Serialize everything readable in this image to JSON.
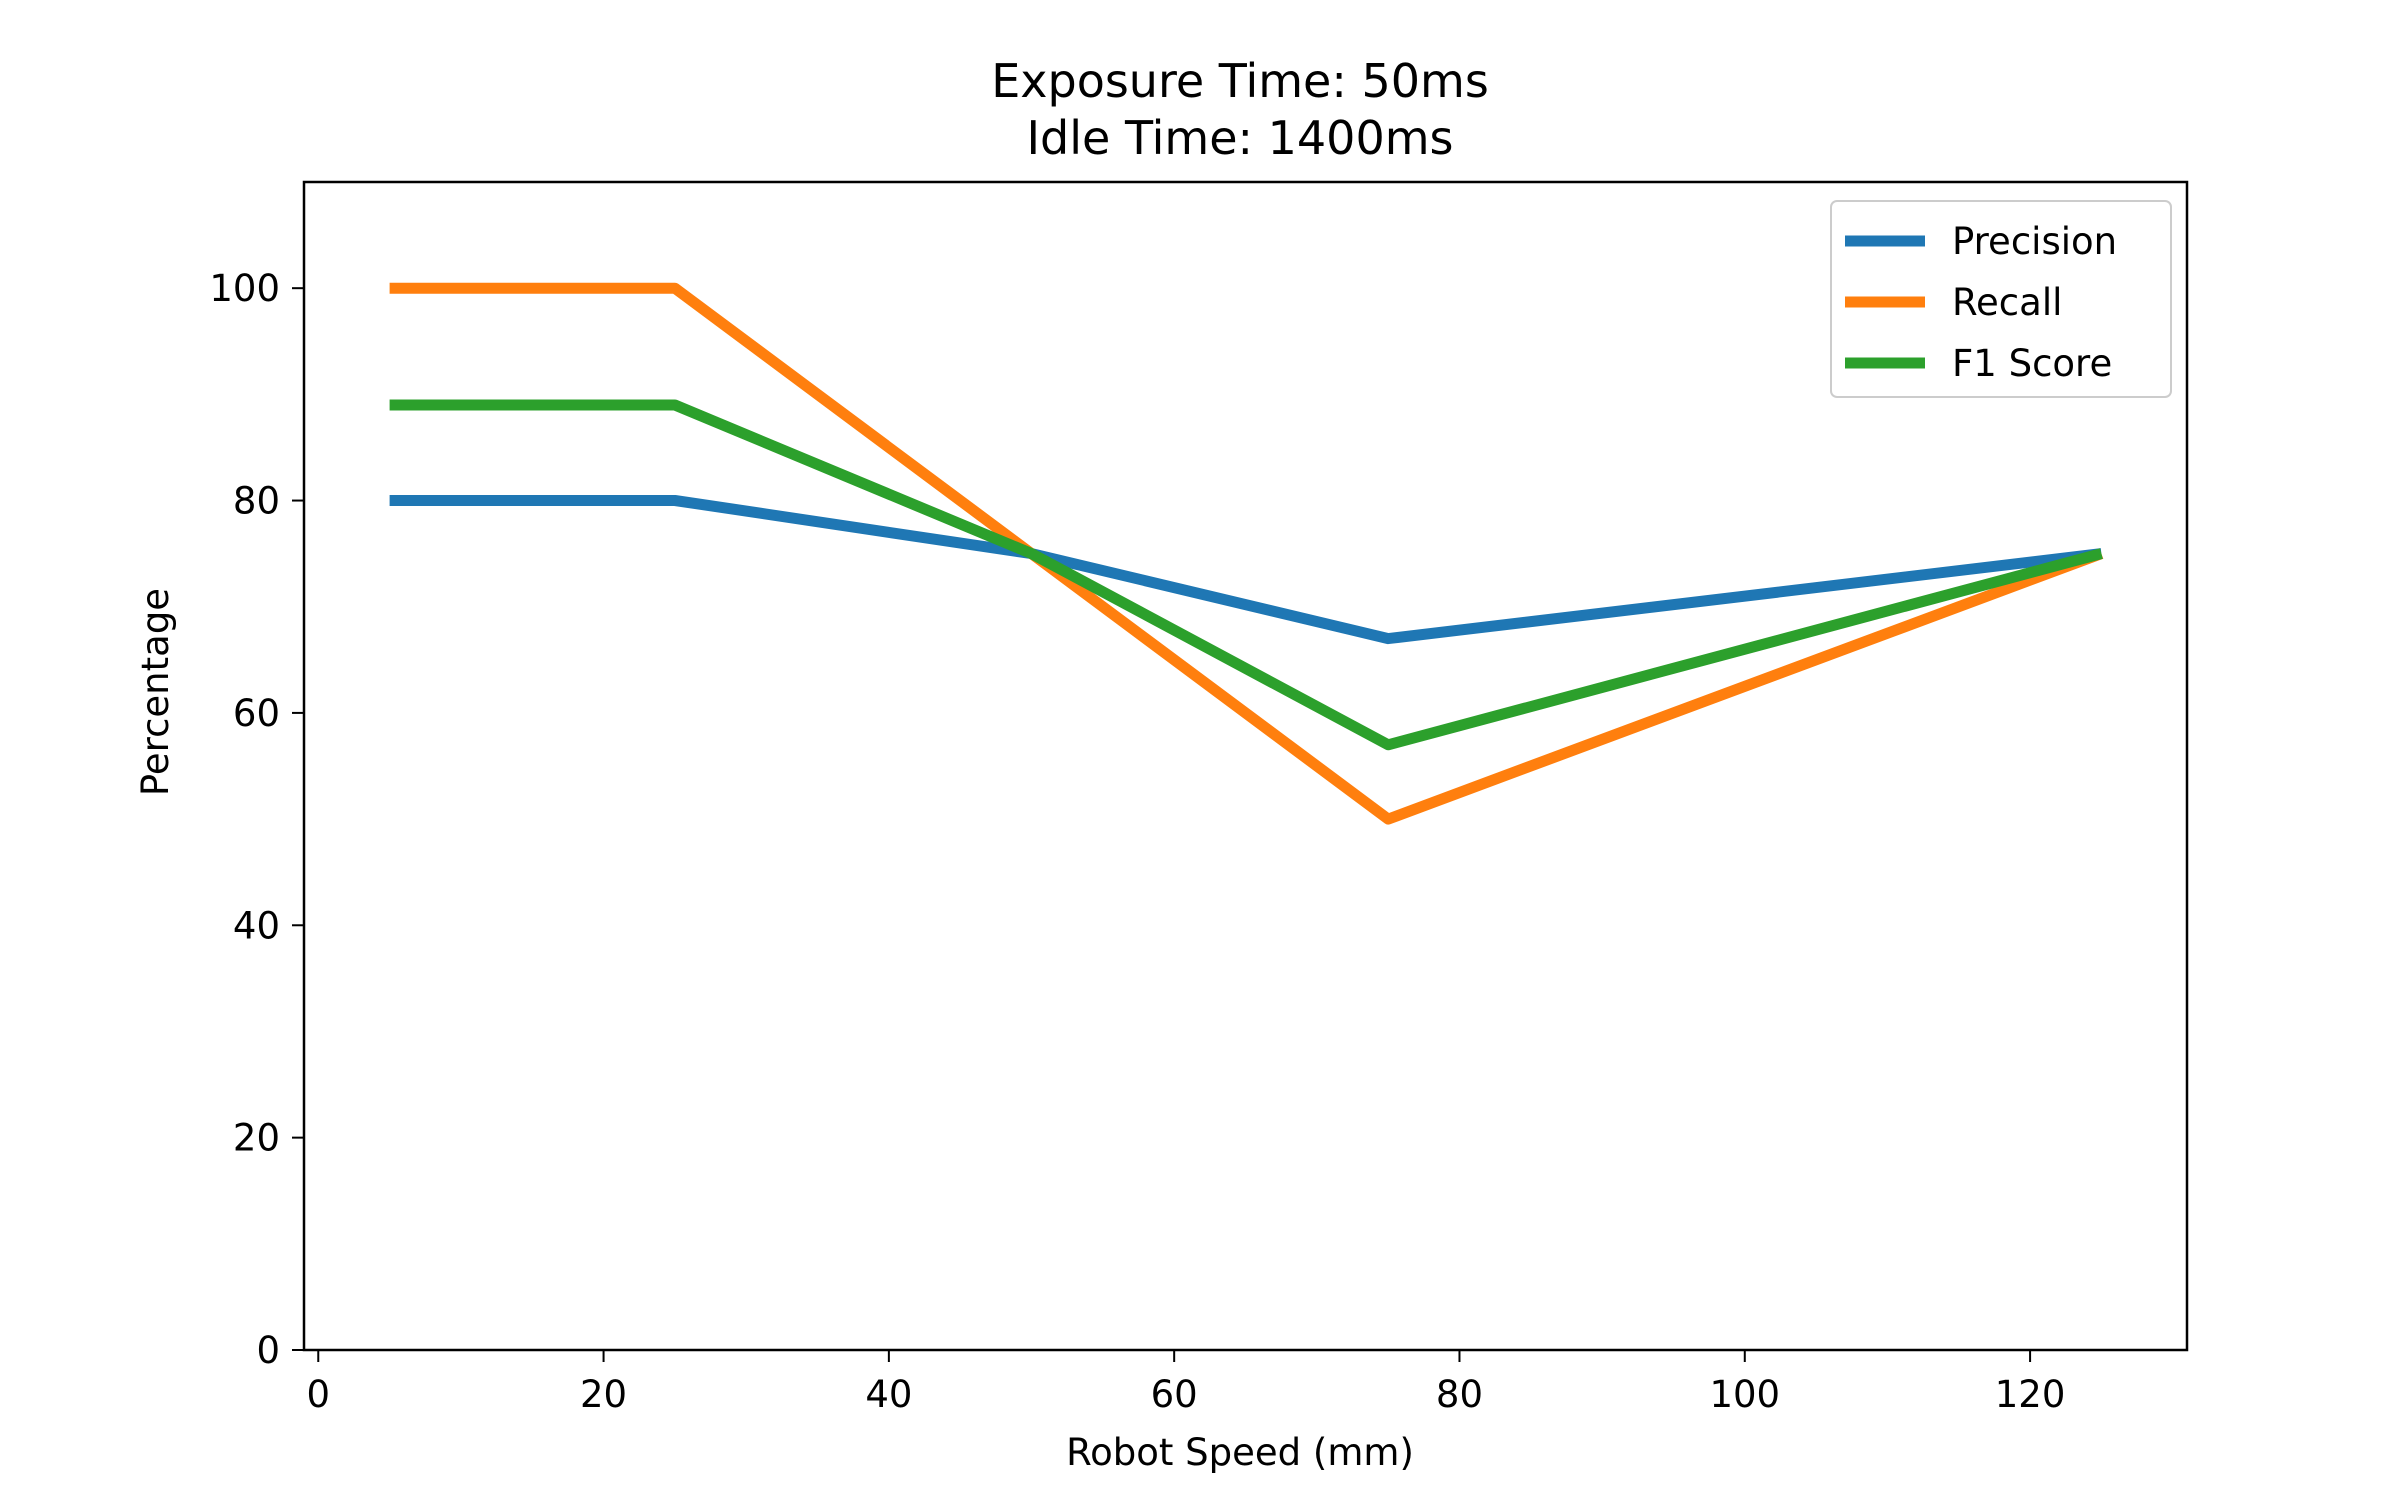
{
  "chart_data": {
    "type": "line",
    "title_lines": [
      "Exposure Time: 50ms",
      "Idle Time: 1400ms"
    ],
    "xlabel": "Robot Speed (mm)",
    "ylabel": "Percentage",
    "x": [
      5,
      25,
      50,
      75,
      125
    ],
    "xlim": [
      -1,
      131
    ],
    "ylim": [
      0,
      110
    ],
    "xticks": [
      0,
      20,
      40,
      60,
      80,
      100,
      120
    ],
    "yticks": [
      0,
      20,
      40,
      60,
      80,
      100
    ],
    "grid": false,
    "legend_position": "top-right",
    "series": [
      {
        "name": "Precision",
        "color": "#1f77b4",
        "values": [
          80,
          80,
          75,
          67,
          75
        ]
      },
      {
        "name": "Recall",
        "color": "#ff7f0e",
        "values": [
          100,
          100,
          75,
          50,
          75
        ]
      },
      {
        "name": "F1 Score",
        "color": "#2ca02c",
        "values": [
          89,
          89,
          75,
          57,
          75
        ]
      }
    ]
  }
}
